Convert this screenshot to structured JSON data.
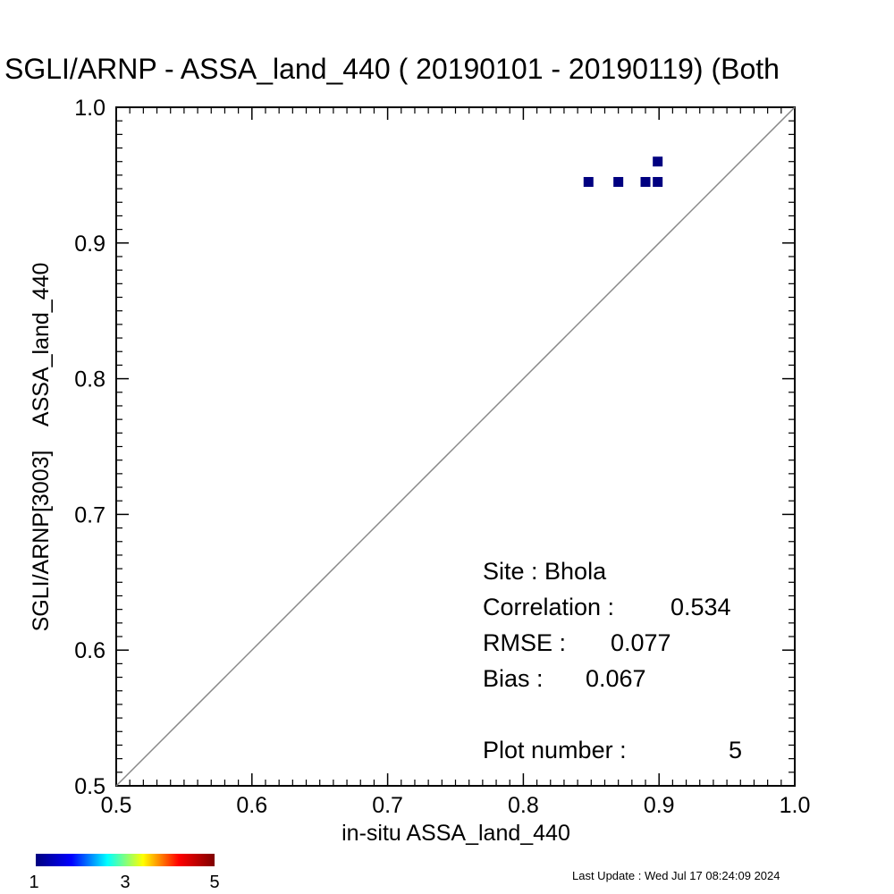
{
  "chart_data": {
    "type": "scatter",
    "title": "SGLI/ARNP - ASSA_land_440 ( 20190101 - 20190119) (Both",
    "xlabel": "in-situ ASSA_land_440",
    "ylabel": "SGLI/ARNP[3003]    ASSA_land_440",
    "xlim": [
      0.5,
      1.0
    ],
    "ylim": [
      0.5,
      1.0
    ],
    "x_ticks": [
      "0.5",
      "0.6",
      "0.7",
      "0.8",
      "0.9",
      "1.0"
    ],
    "y_ticks": [
      "0.5",
      "0.6",
      "0.7",
      "0.8",
      "0.9",
      "1.0"
    ],
    "x_tick_values": [
      0.5,
      0.6,
      0.7,
      0.8,
      0.9,
      1.0
    ],
    "y_tick_values": [
      0.5,
      0.6,
      0.7,
      0.8,
      0.9,
      1.0
    ],
    "one_to_one_line": true,
    "grid": false,
    "points": [
      {
        "x": 0.848,
        "y": 0.945,
        "count": 1
      },
      {
        "x": 0.87,
        "y": 0.945,
        "count": 1
      },
      {
        "x": 0.89,
        "y": 0.945,
        "count": 1
      },
      {
        "x": 0.899,
        "y": 0.945,
        "count": 1
      },
      {
        "x": 0.899,
        "y": 0.96,
        "count": 1
      }
    ],
    "stats": {
      "site_label": "Site : Bhola",
      "correlation_label": "Correlation :",
      "correlation_value": "0.534",
      "rmse_label": "RMSE :",
      "rmse_value": "0.077",
      "bias_label": "Bias :",
      "bias_value": "0.067",
      "plot_number_label": "Plot number :",
      "plot_number_value": "5"
    },
    "colorbar": {
      "min": 1,
      "max": 5,
      "tick_labels": [
        "1",
        "3",
        "5"
      ],
      "colors": [
        "#00007f",
        "#0000ff",
        "#00ffff",
        "#ffff00",
        "#ff0000",
        "#7f0000"
      ]
    },
    "point_color": "#000080",
    "footer": "Last Update : Wed Jul 17 08:24:09 2024"
  }
}
